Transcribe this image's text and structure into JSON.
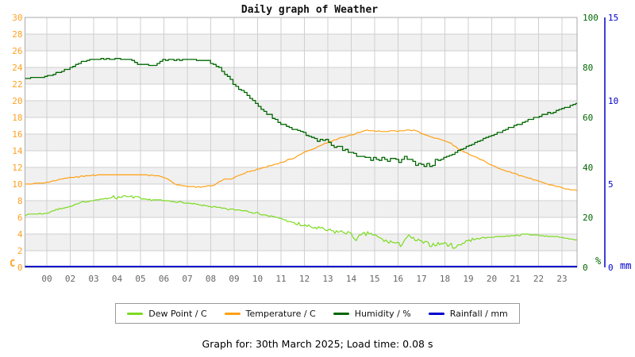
{
  "title": "Daily graph of Weather",
  "caption": "Graph for: 30th March 2025; Load time: 0.08 s",
  "colors": {
    "dew_point": "#7CDB20",
    "temperature": "#FFA013",
    "humidity": "#006600",
    "rainfall": "#0000CC",
    "left_axis_labels": "#FFA020",
    "humidity_axis_labels": "#006600",
    "rainfall_axis_labels": "#0000CC",
    "x_axis_labels": "#666666",
    "gridline": "#CFCFCF",
    "band_fill": "#F0F0F0",
    "plot_border": "#AAAAAA"
  },
  "axes": {
    "x": {
      "labels": [
        "00",
        "02",
        "03",
        "04",
        "05",
        "06",
        "07",
        "08",
        "09",
        "10",
        "11",
        "12",
        "13",
        "14",
        "15",
        "16",
        "17",
        "18",
        "19",
        "20",
        "21",
        "22",
        "23"
      ]
    },
    "left": {
      "unit": "C",
      "ticks": [
        0,
        2,
        4,
        6,
        8,
        10,
        12,
        14,
        16,
        18,
        20,
        22,
        24,
        26,
        28,
        30
      ]
    },
    "right_humidity": {
      "unit": "%",
      "ticks": [
        0,
        20,
        40,
        60,
        80,
        100
      ]
    },
    "right_rainfall": {
      "unit": "mm",
      "ticks": [
        0,
        5,
        10,
        15
      ]
    }
  },
  "chart_data": {
    "type": "line",
    "title": "Daily graph of Weather",
    "x_axis_note": "hour of day; x value is position in tick-spacing units, 0 = tick 00",
    "x_range": [
      -0.93,
      22.64
    ],
    "grid": true,
    "legend_position": "bottom",
    "series": [
      {
        "id": "temperature",
        "label": "Temperature / C",
        "color": "#FFA013",
        "unit": "C",
        "axis_range": [
          0,
          30
        ],
        "seed": 3,
        "sample_step": 0.1,
        "quantize": 0.1,
        "width": 1.2,
        "noise": [
          [
            -1,
            23,
            0.05
          ]
        ],
        "points": [
          [
            -0.93,
            10.0
          ],
          [
            0,
            10.2
          ],
          [
            0.5,
            10.5
          ],
          [
            1,
            10.75
          ],
          [
            1.7,
            11.0
          ],
          [
            2.2,
            11.1
          ],
          [
            3,
            11.1
          ],
          [
            4,
            11.1
          ],
          [
            4.7,
            11.0
          ],
          [
            5,
            10.8
          ],
          [
            5.3,
            10.3
          ],
          [
            5.6,
            9.9
          ],
          [
            6,
            9.75
          ],
          [
            6.3,
            9.65
          ],
          [
            6.8,
            9.7
          ],
          [
            7.1,
            9.85
          ],
          [
            7.4,
            10.3
          ],
          [
            7.6,
            10.6
          ],
          [
            7.9,
            10.6
          ],
          [
            8.1,
            10.85
          ],
          [
            8.6,
            11.5
          ],
          [
            9.2,
            11.9
          ],
          [
            9.8,
            12.4
          ],
          [
            10.5,
            13.1
          ],
          [
            11,
            13.8
          ],
          [
            11.5,
            14.4
          ],
          [
            12,
            15.0
          ],
          [
            12.5,
            15.5
          ],
          [
            13,
            15.9
          ],
          [
            13.4,
            16.25
          ],
          [
            13.7,
            16.45
          ],
          [
            14.1,
            16.35
          ],
          [
            14.4,
            16.3
          ],
          [
            14.7,
            16.45
          ],
          [
            15,
            16.35
          ],
          [
            15.4,
            16.5
          ],
          [
            15.7,
            16.4
          ],
          [
            16,
            16.1
          ],
          [
            16.3,
            15.75
          ],
          [
            16.9,
            15.3
          ],
          [
            17.3,
            14.8
          ],
          [
            17.6,
            14.2
          ],
          [
            18,
            13.6
          ],
          [
            18.4,
            13.1
          ],
          [
            18.9,
            12.4
          ],
          [
            19.5,
            11.7
          ],
          [
            20,
            11.2
          ],
          [
            20.5,
            10.8
          ],
          [
            21,
            10.35
          ],
          [
            21.5,
            9.9
          ],
          [
            22,
            9.55
          ],
          [
            22.64,
            9.2
          ]
        ]
      },
      {
        "id": "dew-point",
        "label": "Dew Point / C",
        "color": "#7CDB20",
        "unit": "C",
        "axis_range": [
          0,
          30
        ],
        "seed": 7,
        "sample_step": 0.07,
        "quantize": 0.1,
        "width": 1.2,
        "noise": [
          [
            -1,
            2.5,
            0.06
          ],
          [
            2.5,
            4,
            0.18
          ],
          [
            4,
            10.5,
            0.08
          ],
          [
            10.5,
            18.3,
            0.26
          ],
          [
            18.3,
            23,
            0.06
          ]
        ],
        "points": [
          [
            -0.93,
            6.3
          ],
          [
            0,
            6.5
          ],
          [
            0.5,
            7.0
          ],
          [
            1,
            7.3
          ],
          [
            1.5,
            7.8
          ],
          [
            2,
            8.05
          ],
          [
            2.5,
            8.25
          ],
          [
            2.8,
            8.5
          ],
          [
            3,
            8.35
          ],
          [
            3.2,
            8.55
          ],
          [
            3.5,
            8.4
          ],
          [
            3.8,
            8.45
          ],
          [
            4,
            8.2
          ],
          [
            4.5,
            8.1
          ],
          [
            5,
            8.0
          ],
          [
            5.5,
            7.9
          ],
          [
            6,
            7.7
          ],
          [
            6.5,
            7.5
          ],
          [
            7,
            7.3
          ],
          [
            7.6,
            7.0
          ],
          [
            8.2,
            6.9
          ],
          [
            8.6,
            6.75
          ],
          [
            9,
            6.5
          ],
          [
            9.5,
            6.15
          ],
          [
            10,
            5.9
          ],
          [
            10.5,
            5.3
          ],
          [
            11,
            5.0
          ],
          [
            11.7,
            4.6
          ],
          [
            12.3,
            4.3
          ],
          [
            12.9,
            4.15
          ],
          [
            13.2,
            3.4
          ],
          [
            13.5,
            3.9
          ],
          [
            13.8,
            4.1
          ],
          [
            14.4,
            3.2
          ],
          [
            14.8,
            3.0
          ],
          [
            15.1,
            2.7
          ],
          [
            15.4,
            3.7
          ],
          [
            15.8,
            3.2
          ],
          [
            16.4,
            2.7
          ],
          [
            16.9,
            2.9
          ],
          [
            17.2,
            2.7
          ],
          [
            17.5,
            2.4
          ],
          [
            17.9,
            3.2
          ],
          [
            18.5,
            3.5
          ],
          [
            19.2,
            3.7
          ],
          [
            19.9,
            3.8
          ],
          [
            20.5,
            4.0
          ],
          [
            21.2,
            3.8
          ],
          [
            21.9,
            3.6
          ],
          [
            22.64,
            3.3
          ]
        ]
      },
      {
        "id": "humidity",
        "label": "Humidity / %",
        "color": "#006600",
        "unit": "%",
        "axis_range": [
          0,
          100
        ],
        "seed": 11,
        "sample_step": 0.12,
        "mode": "step",
        "quantize": 0.4,
        "width": 1.3,
        "noise": [
          [
            -1,
            6.9,
            0.2
          ],
          [
            6.9,
            10.5,
            0.45
          ],
          [
            10.5,
            13.8,
            0.8
          ],
          [
            13.8,
            17,
            1.1
          ],
          [
            17,
            23,
            0.3
          ]
        ],
        "points": [
          [
            -0.93,
            75.5
          ],
          [
            0,
            76.5
          ],
          [
            0.5,
            78
          ],
          [
            1,
            80
          ],
          [
            1.5,
            82.6
          ],
          [
            2,
            83.2
          ],
          [
            2.6,
            83.4
          ],
          [
            3.3,
            83.2
          ],
          [
            3.6,
            83.2
          ],
          [
            3.8,
            81.3
          ],
          [
            4.3,
            81
          ],
          [
            4.7,
            81.2
          ],
          [
            4.9,
            83
          ],
          [
            5.5,
            83
          ],
          [
            6,
            83.2
          ],
          [
            6.4,
            83
          ],
          [
            6.9,
            82.5
          ],
          [
            7.3,
            80
          ],
          [
            7.7,
            76.5
          ],
          [
            8,
            73
          ],
          [
            8.5,
            69
          ],
          [
            8.9,
            65.5
          ],
          [
            9.4,
            61.5
          ],
          [
            10,
            57.5
          ],
          [
            10.6,
            55
          ],
          [
            11.2,
            52
          ],
          [
            12,
            50
          ],
          [
            12.5,
            47.5
          ],
          [
            13,
            45.5
          ],
          [
            13.8,
            43.5
          ],
          [
            14.3,
            44
          ],
          [
            14.8,
            42.5
          ],
          [
            15.3,
            43.5
          ],
          [
            15.8,
            41.5
          ],
          [
            16.3,
            41
          ],
          [
            16.9,
            43
          ],
          [
            17.6,
            47
          ],
          [
            18.5,
            51
          ],
          [
            19.4,
            54.5
          ],
          [
            20.3,
            58
          ],
          [
            21.2,
            61
          ],
          [
            22.1,
            64
          ],
          [
            22.64,
            65.5
          ]
        ]
      },
      {
        "id": "rainfall",
        "label": "Rainfall / mm",
        "color": "#0000CC",
        "unit": "mm",
        "axis_range": [
          0,
          15
        ],
        "seed": 5,
        "sample_step": 5,
        "quantize": 0,
        "width": 2,
        "y_offset": -1,
        "noise": [],
        "points": [
          [
            -0.93,
            0
          ],
          [
            22.64,
            0
          ]
        ]
      }
    ]
  }
}
